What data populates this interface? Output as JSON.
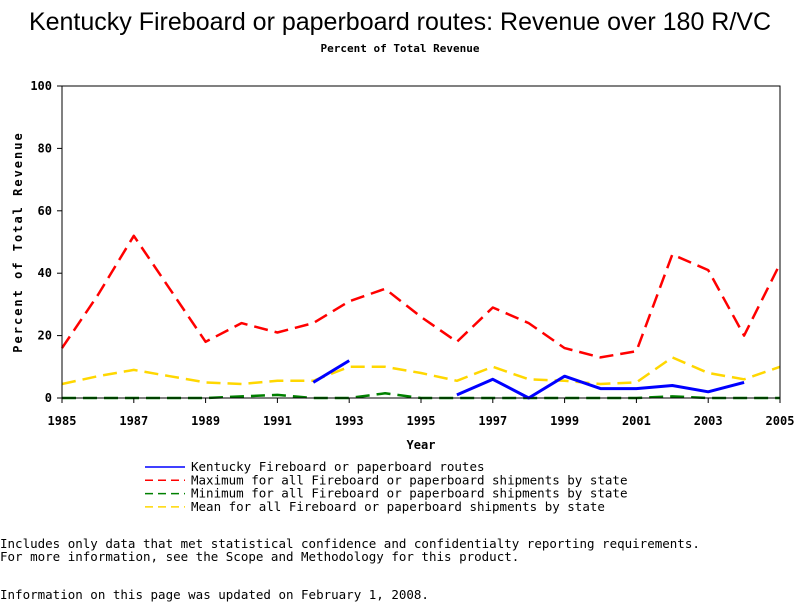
{
  "chart_data": {
    "type": "line",
    "title": "Kentucky Fireboard or paperboard routes: Revenue over 180 R/VC",
    "subtitle": "Percent of Total Revenue",
    "xlabel": "Year",
    "ylabel": "Percent of Total Revenue",
    "xlim": [
      1985,
      2005
    ],
    "ylim": [
      0,
      100
    ],
    "x_ticks": [
      "1985",
      "1987",
      "1989",
      "1991",
      "1993",
      "1995",
      "1997",
      "1999",
      "2001",
      "2003",
      "2005"
    ],
    "y_ticks": [
      "0",
      "20",
      "40",
      "60",
      "80",
      "100"
    ],
    "grid": false,
    "legend_position": "bottom",
    "series": [
      {
        "name": "Kentucky Fireboard or paperboard routes",
        "color": "#0000ff",
        "style": "solid",
        "points": [
          [
            1992,
            5
          ],
          [
            1993,
            12
          ],
          [
            1996,
            1
          ],
          [
            1997,
            6
          ],
          [
            1998,
            0
          ],
          [
            1999,
            7
          ],
          [
            2000,
            3
          ],
          [
            2001,
            3
          ],
          [
            2002,
            4
          ],
          [
            2003,
            2
          ],
          [
            2004,
            5
          ]
        ]
      },
      {
        "name": "Maximum for all Fireboard or paperboard shipments by state",
        "color": "#ff0000",
        "style": "dashed",
        "points": [
          [
            1985,
            16
          ],
          [
            1986,
            33
          ],
          [
            1987,
            52
          ],
          [
            1988,
            35
          ],
          [
            1989,
            18
          ],
          [
            1990,
            24
          ],
          [
            1991,
            21
          ],
          [
            1992,
            24
          ],
          [
            1993,
            31
          ],
          [
            1994,
            35
          ],
          [
            1995,
            26
          ],
          [
            1996,
            18
          ],
          [
            1997,
            29
          ],
          [
            1998,
            24
          ],
          [
            1999,
            16
          ],
          [
            2000,
            13
          ],
          [
            2001,
            15
          ],
          [
            2002,
            46
          ],
          [
            2003,
            41
          ],
          [
            2004,
            20
          ],
          [
            2005,
            43
          ]
        ]
      },
      {
        "name": "Minimum for all Fireboard or paperboard shipments by state",
        "color": "#008000",
        "style": "dashed",
        "points": [
          [
            1985,
            0
          ],
          [
            1986,
            0
          ],
          [
            1987,
            0
          ],
          [
            1988,
            0
          ],
          [
            1989,
            0
          ],
          [
            1990,
            0.5
          ],
          [
            1991,
            1
          ],
          [
            1992,
            0
          ],
          [
            1993,
            0
          ],
          [
            1994,
            1.5
          ],
          [
            1995,
            0
          ],
          [
            1996,
            0
          ],
          [
            1997,
            0
          ],
          [
            1998,
            0
          ],
          [
            1999,
            0
          ],
          [
            2000,
            0
          ],
          [
            2001,
            0
          ],
          [
            2002,
            0.5
          ],
          [
            2003,
            0
          ],
          [
            2004,
            0
          ],
          [
            2005,
            0
          ]
        ]
      },
      {
        "name": "Mean for all Fireboard or paperboard shipments by state",
        "color": "#ffd700",
        "style": "dashed",
        "points": [
          [
            1985,
            4.5
          ],
          [
            1986,
            7
          ],
          [
            1987,
            9
          ],
          [
            1988,
            7
          ],
          [
            1989,
            5
          ],
          [
            1990,
            4.5
          ],
          [
            1991,
            5.5
          ],
          [
            1992,
            5.5
          ],
          [
            1993,
            10
          ],
          [
            1994,
            10
          ],
          [
            1995,
            8
          ],
          [
            1996,
            5.5
          ],
          [
            1997,
            10
          ],
          [
            1998,
            6
          ],
          [
            1999,
            5.5
          ],
          [
            2000,
            4.5
          ],
          [
            2001,
            5
          ],
          [
            2002,
            13
          ],
          [
            2003,
            8
          ],
          [
            2004,
            6
          ],
          [
            2005,
            10
          ]
        ]
      }
    ]
  },
  "footnotes": [
    "Includes only data that met statistical confidence and confidentialty reporting requirements.",
    "For more information, see the Scope and Methodology for this product."
  ],
  "updated_note": "Information on this page was updated on February 1, 2008."
}
